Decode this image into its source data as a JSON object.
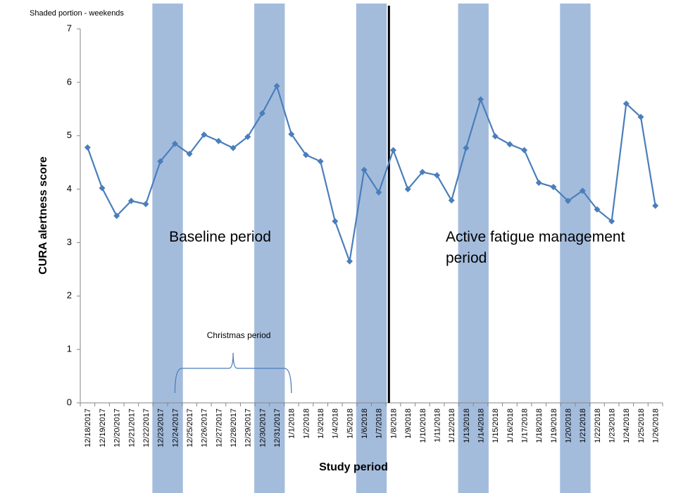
{
  "chart_data": {
    "type": "line",
    "note": "Shaded portion - weekends",
    "ylabel": "CURA alertness score",
    "xlabel": "Study period",
    "categories": [
      "12/18/2017",
      "12/19/2017",
      "12/20/2017",
      "12/21/2017",
      "12/22/2017",
      "12/23/2017",
      "12/24/2017",
      "12/25/2017",
      "12/26/2017",
      "12/27/2017",
      "12/28/2017",
      "12/29/2017",
      "12/30/2017",
      "12/31/2017",
      "1/1/2018",
      "1/2/2018",
      "1/3/2018",
      "1/4/2018",
      "1/5/2018",
      "1/6/2018",
      "1/7/2018",
      "1/8/2018",
      "1/9/2018",
      "1/10/2018",
      "1/11/2018",
      "1/12/2018",
      "1/13/2018",
      "1/14/2018",
      "1/15/2018",
      "1/16/2018",
      "1/17/2018",
      "1/18/2018",
      "1/19/2018",
      "1/20/2018",
      "1/21/2018",
      "1/22/2018",
      "1/23/2018",
      "1/24/2018",
      "1/25/2018",
      "1/26/2018"
    ],
    "series": [
      {
        "name": "CURA alertness score",
        "color": "#4a7ebb",
        "values": [
          4.78,
          4.02,
          3.5,
          3.78,
          3.72,
          4.52,
          4.85,
          4.66,
          5.02,
          4.9,
          4.77,
          4.98,
          5.42,
          5.93,
          5.03,
          4.64,
          4.52,
          3.4,
          2.65,
          4.36,
          3.94,
          4.73,
          4.0,
          4.32,
          4.26,
          3.79,
          4.77,
          5.68,
          4.99,
          4.84,
          4.73,
          4.12,
          4.04,
          3.78,
          3.97,
          3.62,
          3.4,
          5.6,
          5.35,
          3.69
        ]
      }
    ],
    "ylim": [
      0,
      7
    ],
    "yticks": [
      0,
      1,
      2,
      3,
      4,
      5,
      6,
      7
    ],
    "weekend_color": "#a4bcdc",
    "weekends": [
      [
        "12/23/2017",
        "12/24/2017"
      ],
      [
        "12/30/2017",
        "12/31/2017"
      ],
      [
        "1/6/2018",
        "1/7/2018"
      ],
      [
        "1/13/2018",
        "1/14/2018"
      ],
      [
        "1/20/2018",
        "1/21/2018"
      ]
    ],
    "period_split": "1/8/2018",
    "periods": [
      {
        "lines": [
          "Baseline period"
        ],
        "at": "12/24/2017",
        "y": 3.1
      },
      {
        "lines": [
          "Active fatigue management",
          "period"
        ],
        "at": "1/12/2018",
        "y": 3.1
      }
    ],
    "brace": {
      "label": "Christmas period",
      "from": "12/24/2017",
      "to": "1/1/2018"
    }
  }
}
